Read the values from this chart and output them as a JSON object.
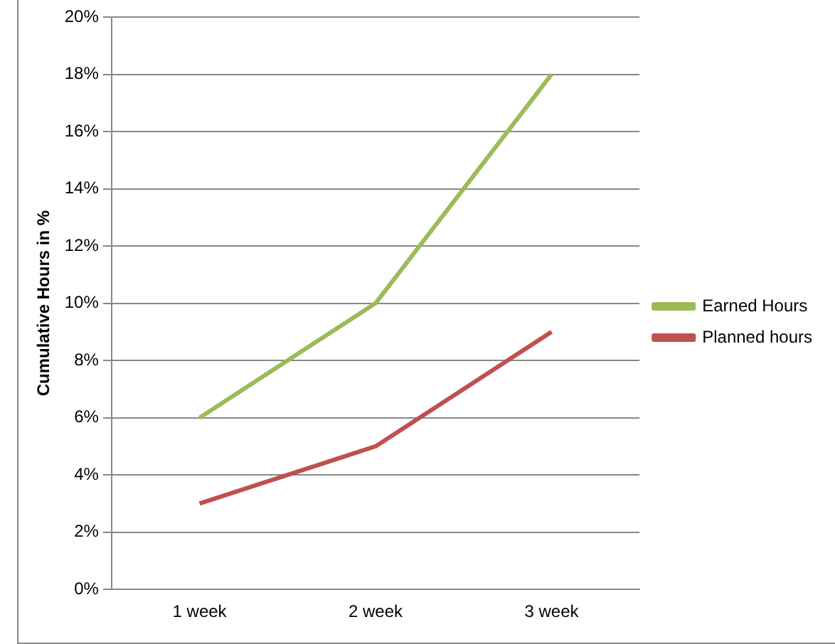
{
  "chart_data": {
    "type": "line",
    "ylabel": "Cumulative Hours in %",
    "categories": [
      "1 week",
      "2 week",
      "3 week"
    ],
    "series": [
      {
        "name": "Earned Hours",
        "color": "#9bbb59",
        "values": [
          6,
          10,
          18
        ]
      },
      {
        "name": "Planned hours",
        "color": "#c0504d",
        "values": [
          3,
          5,
          9
        ]
      }
    ],
    "ylim": [
      0,
      20
    ],
    "yticks": [
      {
        "value": 0,
        "label": "0%"
      },
      {
        "value": 2,
        "label": "2%"
      },
      {
        "value": 4,
        "label": "4%"
      },
      {
        "value": 6,
        "label": "6%"
      },
      {
        "value": 8,
        "label": "8%"
      },
      {
        "value": 10,
        "label": "10%"
      },
      {
        "value": 12,
        "label": "12%"
      },
      {
        "value": 14,
        "label": "14%"
      },
      {
        "value": 16,
        "label": "16%"
      },
      {
        "value": 18,
        "label": "18%"
      },
      {
        "value": 20,
        "label": "20%"
      }
    ],
    "grid": "y",
    "legend": "right",
    "marker": "none",
    "line_style": "solid"
  }
}
